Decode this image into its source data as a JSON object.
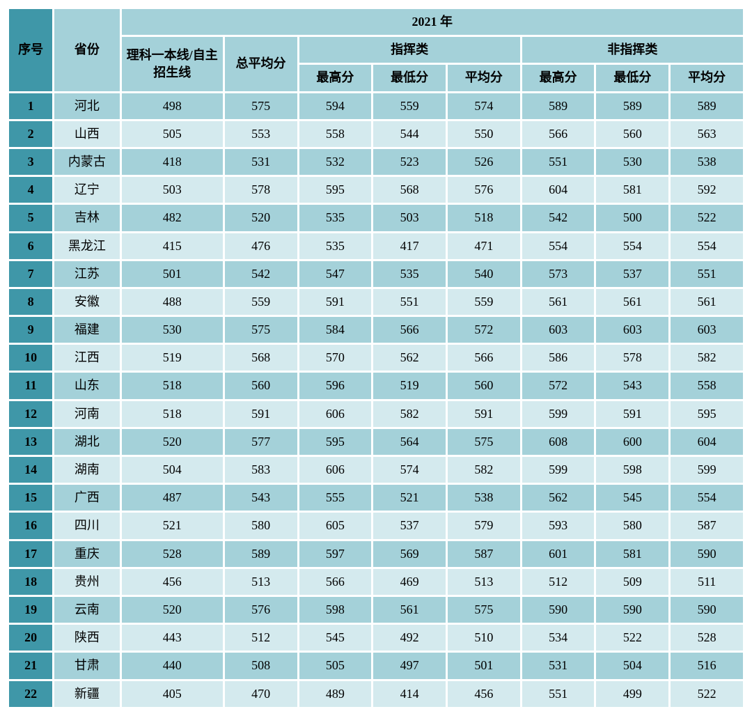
{
  "table": {
    "type": "table",
    "colors": {
      "header_dark": "#3f97a8",
      "header_light": "#a4d1d9",
      "seq_bg": "#3f97a8",
      "row_odd_bg": "#a4d1d9",
      "row_even_bg": "#d4eaee",
      "text": "#000000"
    },
    "fontsize_header": 18,
    "fontsize_body": 18,
    "headers": {
      "seq": "序号",
      "province": "省份",
      "year": "2021 年",
      "line": "理科一本线/自主招生线",
      "avg": "总平均分",
      "cat1": "指挥类",
      "cat2": "非指挥类",
      "max": "最高分",
      "min": "最低分",
      "mean": "平均分"
    },
    "rows": [
      {
        "seq": "1",
        "prov": "河北",
        "line": "498",
        "avg": "575",
        "c1max": "594",
        "c1min": "559",
        "c1avg": "574",
        "c2max": "589",
        "c2min": "589",
        "c2avg": "589"
      },
      {
        "seq": "2",
        "prov": "山西",
        "line": "505",
        "avg": "553",
        "c1max": "558",
        "c1min": "544",
        "c1avg": "550",
        "c2max": "566",
        "c2min": "560",
        "c2avg": "563"
      },
      {
        "seq": "3",
        "prov": "内蒙古",
        "line": "418",
        "avg": "531",
        "c1max": "532",
        "c1min": "523",
        "c1avg": "526",
        "c2max": "551",
        "c2min": "530",
        "c2avg": "538"
      },
      {
        "seq": "4",
        "prov": "辽宁",
        "line": "503",
        "avg": "578",
        "c1max": "595",
        "c1min": "568",
        "c1avg": "576",
        "c2max": "604",
        "c2min": "581",
        "c2avg": "592"
      },
      {
        "seq": "5",
        "prov": "吉林",
        "line": "482",
        "avg": "520",
        "c1max": "535",
        "c1min": "503",
        "c1avg": "518",
        "c2max": "542",
        "c2min": "500",
        "c2avg": "522"
      },
      {
        "seq": "6",
        "prov": "黑龙江",
        "line": "415",
        "avg": "476",
        "c1max": "535",
        "c1min": "417",
        "c1avg": "471",
        "c2max": "554",
        "c2min": "554",
        "c2avg": "554"
      },
      {
        "seq": "7",
        "prov": "江苏",
        "line": "501",
        "avg": "542",
        "c1max": "547",
        "c1min": "535",
        "c1avg": "540",
        "c2max": "573",
        "c2min": "537",
        "c2avg": "551"
      },
      {
        "seq": "8",
        "prov": "安徽",
        "line": "488",
        "avg": "559",
        "c1max": "591",
        "c1min": "551",
        "c1avg": "559",
        "c2max": "561",
        "c2min": "561",
        "c2avg": "561"
      },
      {
        "seq": "9",
        "prov": "福建",
        "line": "530",
        "avg": "575",
        "c1max": "584",
        "c1min": "566",
        "c1avg": "572",
        "c2max": "603",
        "c2min": "603",
        "c2avg": "603"
      },
      {
        "seq": "10",
        "prov": "江西",
        "line": "519",
        "avg": "568",
        "c1max": "570",
        "c1min": "562",
        "c1avg": "566",
        "c2max": "586",
        "c2min": "578",
        "c2avg": "582"
      },
      {
        "seq": "11",
        "prov": "山东",
        "line": "518",
        "avg": "560",
        "c1max": "596",
        "c1min": "519",
        "c1avg": "560",
        "c2max": "572",
        "c2min": "543",
        "c2avg": "558"
      },
      {
        "seq": "12",
        "prov": "河南",
        "line": "518",
        "avg": "591",
        "c1max": "606",
        "c1min": "582",
        "c1avg": "591",
        "c2max": "599",
        "c2min": "591",
        "c2avg": "595"
      },
      {
        "seq": "13",
        "prov": "湖北",
        "line": "520",
        "avg": "577",
        "c1max": "595",
        "c1min": "564",
        "c1avg": "575",
        "c2max": "608",
        "c2min": "600",
        "c2avg": "604"
      },
      {
        "seq": "14",
        "prov": "湖南",
        "line": "504",
        "avg": "583",
        "c1max": "606",
        "c1min": "574",
        "c1avg": "582",
        "c2max": "599",
        "c2min": "598",
        "c2avg": "599"
      },
      {
        "seq": "15",
        "prov": "广西",
        "line": "487",
        "avg": "543",
        "c1max": "555",
        "c1min": "521",
        "c1avg": "538",
        "c2max": "562",
        "c2min": "545",
        "c2avg": "554"
      },
      {
        "seq": "16",
        "prov": "四川",
        "line": "521",
        "avg": "580",
        "c1max": "605",
        "c1min": "537",
        "c1avg": "579",
        "c2max": "593",
        "c2min": "580",
        "c2avg": "587"
      },
      {
        "seq": "17",
        "prov": "重庆",
        "line": "528",
        "avg": "589",
        "c1max": "597",
        "c1min": "569",
        "c1avg": "587",
        "c2max": "601",
        "c2min": "581",
        "c2avg": "590"
      },
      {
        "seq": "18",
        "prov": "贵州",
        "line": "456",
        "avg": "513",
        "c1max": "566",
        "c1min": "469",
        "c1avg": "513",
        "c2max": "512",
        "c2min": "509",
        "c2avg": "511"
      },
      {
        "seq": "19",
        "prov": "云南",
        "line": "520",
        "avg": "576",
        "c1max": "598",
        "c1min": "561",
        "c1avg": "575",
        "c2max": "590",
        "c2min": "590",
        "c2avg": "590"
      },
      {
        "seq": "20",
        "prov": "陕西",
        "line": "443",
        "avg": "512",
        "c1max": "545",
        "c1min": "492",
        "c1avg": "510",
        "c2max": "534",
        "c2min": "522",
        "c2avg": "528"
      },
      {
        "seq": "21",
        "prov": "甘肃",
        "line": "440",
        "avg": "508",
        "c1max": "505",
        "c1min": "497",
        "c1avg": "501",
        "c2max": "531",
        "c2min": "504",
        "c2avg": "516"
      },
      {
        "seq": "22",
        "prov": "新疆",
        "line": "405",
        "avg": "470",
        "c1max": "489",
        "c1min": "414",
        "c1avg": "456",
        "c2max": "551",
        "c2min": "499",
        "c2avg": "522"
      }
    ]
  }
}
